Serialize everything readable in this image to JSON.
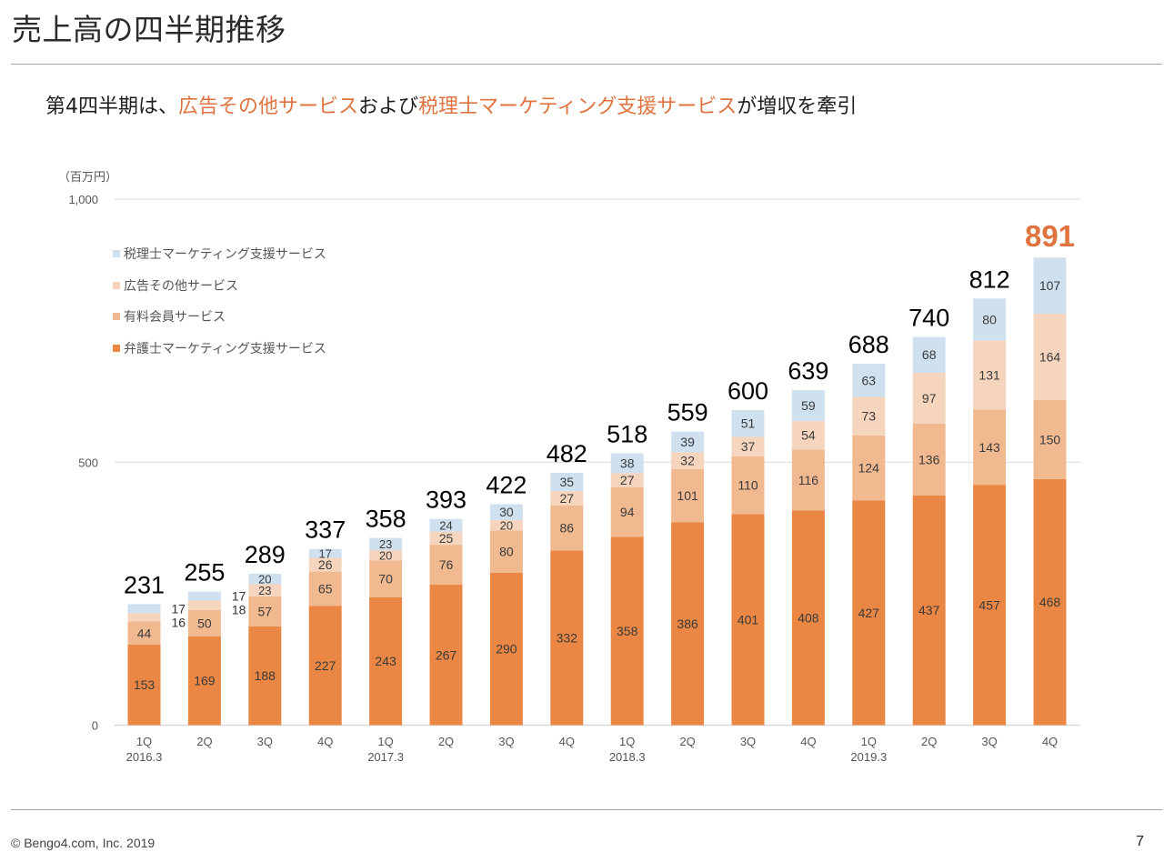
{
  "header": {
    "title": "売上高の四半期推移",
    "subtitle_parts": [
      {
        "text": "第4四半期は、",
        "highlight": false
      },
      {
        "text": "広告その他サービス",
        "highlight": true
      },
      {
        "text": "および",
        "highlight": false
      },
      {
        "text": "税理士マーケティング支援サービス",
        "highlight": true
      },
      {
        "text": "が増収を牽引",
        "highlight": false
      }
    ]
  },
  "colors": {
    "accent": "#e07440",
    "lawyer_marketing": "#ea8744",
    "paid_membership": "#f1b990",
    "advertising_other": "#f6d5be",
    "tax_accountant_marketing": "#cfe0ef",
    "grid": "#d9d9d9",
    "total_label": "#000000",
    "total_label_highlight": "#e07440"
  },
  "footer": {
    "copyright": "© Bengo4.com, Inc. 2019",
    "page_number": "7"
  },
  "chart_data": {
    "type": "bar",
    "stacked": true,
    "title": "売上高の四半期推移",
    "unit_label": "（百万円）",
    "xlabel": "",
    "ylabel": "（百万円）",
    "ylim": [
      0,
      1000
    ],
    "yticks": [
      0,
      500,
      1000
    ],
    "ytick_labels": [
      "0",
      "500",
      "1,000"
    ],
    "grid": true,
    "legend_position": "top-left",
    "categories": [
      "1Q",
      "2Q",
      "3Q",
      "4Q",
      "1Q",
      "2Q",
      "3Q",
      "4Q",
      "1Q",
      "2Q",
      "3Q",
      "4Q",
      "1Q",
      "2Q",
      "3Q",
      "4Q"
    ],
    "category_groups": [
      "2016.3",
      "",
      "",
      "",
      "2017.3",
      "",
      "",
      "",
      "2018.3",
      "",
      "",
      "",
      "2019.3",
      "",
      "",
      ""
    ],
    "series": [
      {
        "name": "弁護士マーケティング支援サービス",
        "color_key": "lawyer_marketing",
        "values": [
          153,
          169,
          188,
          227,
          243,
          267,
          290,
          332,
          358,
          386,
          401,
          408,
          427,
          437,
          457,
          468
        ]
      },
      {
        "name": "有料会員サービス",
        "color_key": "paid_membership",
        "values": [
          44,
          50,
          57,
          65,
          70,
          76,
          80,
          86,
          94,
          101,
          110,
          116,
          124,
          136,
          143,
          150
        ]
      },
      {
        "name": "広告その他サービス",
        "color_key": "advertising_other",
        "values": [
          16,
          18,
          23,
          26,
          20,
          25,
          20,
          27,
          27,
          32,
          37,
          54,
          73,
          97,
          131,
          164
        ]
      },
      {
        "name": "税理士マーケティング支援サービス",
        "color_key": "tax_accountant_marketing",
        "values": [
          17,
          17,
          20,
          17,
          23,
          24,
          30,
          35,
          38,
          39,
          51,
          59,
          63,
          68,
          80,
          107
        ]
      }
    ],
    "legend_order": [
      3,
      2,
      1,
      0
    ],
    "totals": [
      231,
      255,
      289,
      337,
      358,
      393,
      422,
      482,
      518,
      559,
      600,
      639,
      688,
      740,
      812,
      891
    ],
    "highlight_total_index": 15,
    "outside_labels_indices": [
      0,
      1
    ]
  }
}
